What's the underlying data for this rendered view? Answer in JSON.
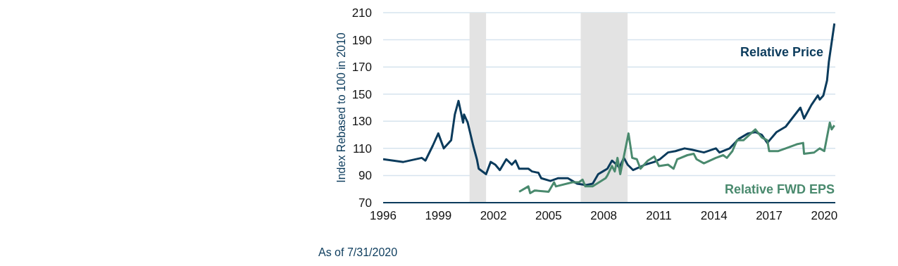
{
  "chart_data": {
    "type": "line",
    "ylabel": "Index Rebased to 100 in 2010",
    "annotations": [
      "As of 7/31/2020"
    ],
    "xlim": [
      1996,
      2020.6
    ],
    "xticks": [
      1996,
      1999,
      2002,
      2005,
      2008,
      2011,
      2014,
      2017,
      2020
    ],
    "ylim": [
      70,
      210
    ],
    "yticks": [
      70,
      90,
      110,
      130,
      150,
      170,
      190,
      210
    ],
    "grid": "y",
    "legend": false,
    "marker": "none",
    "line_style": "solid",
    "bands": [
      {
        "axis": "x",
        "from": 2000.7,
        "to": 2001.6,
        "color": "#e3e3e3"
      },
      {
        "axis": "x",
        "from": 2006.75,
        "to": 2009.3,
        "color": "#e3e3e3"
      }
    ],
    "series": [
      {
        "name": "Relative Price",
        "color": "#0b3b5c",
        "x": [
          1996.0,
          1997.1,
          1998.1,
          1998.3,
          1998.7,
          1999.0,
          1999.3,
          1999.7,
          1999.9,
          2000.1,
          2000.35,
          2000.4,
          2000.6,
          2000.9,
          2001.1,
          2001.2,
          2001.6,
          2001.85,
          2002.1,
          2002.35,
          2002.7,
          2003.0,
          2003.2,
          2003.4,
          2003.9,
          2004.1,
          2004.45,
          2004.6,
          2005.1,
          2005.5,
          2006.05,
          2006.3,
          2006.55,
          2007.05,
          2007.4,
          2007.7,
          2007.95,
          2008.2,
          2008.45,
          2008.7,
          2008.85,
          2009.1,
          2009.3,
          2009.6,
          2010.25,
          2010.75,
          2011.05,
          2011.5,
          2011.9,
          2012.4,
          2012.8,
          2013.45,
          2014.1,
          2014.3,
          2014.85,
          2015.35,
          2015.85,
          2016.25,
          2016.6,
          2016.9,
          2017.4,
          2017.9,
          2018.3,
          2018.7,
          2018.9,
          2019.3,
          2019.65,
          2019.75,
          2019.95,
          2020.15,
          2020.25,
          2020.55
        ],
        "values": [
          102,
          100,
          103,
          101,
          112,
          121,
          110,
          116,
          135,
          145,
          129,
          135,
          129,
          112,
          102,
          95,
          91,
          100,
          98,
          94,
          102,
          98,
          101,
          95,
          95,
          93,
          92,
          88,
          86,
          88,
          88,
          86,
          84,
          83,
          84,
          91,
          93,
          95,
          101,
          98,
          96,
          103,
          98,
          94,
          98,
          100,
          102,
          107,
          108,
          110,
          109,
          107,
          110,
          107,
          110,
          117,
          121,
          122,
          120,
          114,
          122,
          126,
          133,
          140,
          132,
          142,
          149,
          146,
          149,
          160,
          174,
          202
        ]
      },
      {
        "name": "Relative FWD EPS",
        "color": "#4a8a6e",
        "x": [
          2003.4,
          2003.9,
          2004.0,
          2004.25,
          2005.0,
          2005.3,
          2005.4,
          2006.3,
          2006.65,
          2006.85,
          2007.0,
          2007.4,
          2008.1,
          2008.2,
          2008.45,
          2008.6,
          2008.75,
          2008.9,
          2009.35,
          2009.55,
          2009.8,
          2010.0,
          2010.4,
          2010.75,
          2011.0,
          2011.5,
          2011.8,
          2012.0,
          2012.55,
          2012.9,
          2013.05,
          2013.45,
          2014.1,
          2014.5,
          2014.7,
          2015.0,
          2015.25,
          2015.6,
          2016.25,
          2016.6,
          2016.9,
          2017.0,
          2017.5,
          2017.9,
          2018.5,
          2018.85,
          2018.9,
          2019.45,
          2019.75,
          2020.0,
          2020.3,
          2020.4,
          2020.55
        ],
        "values": [
          78,
          82,
          77,
          79,
          78,
          85,
          82,
          85,
          85,
          87,
          82,
          82,
          88,
          90,
          97,
          93,
          103,
          91,
          121,
          103,
          102,
          95,
          101,
          104,
          97,
          98,
          95,
          102,
          105,
          106,
          102,
          99,
          103,
          105,
          103,
          108,
          116,
          116,
          124,
          118,
          116,
          108,
          108,
          110,
          113,
          114,
          106,
          107,
          110,
          108,
          129,
          124,
          127
        ]
      }
    ]
  }
}
